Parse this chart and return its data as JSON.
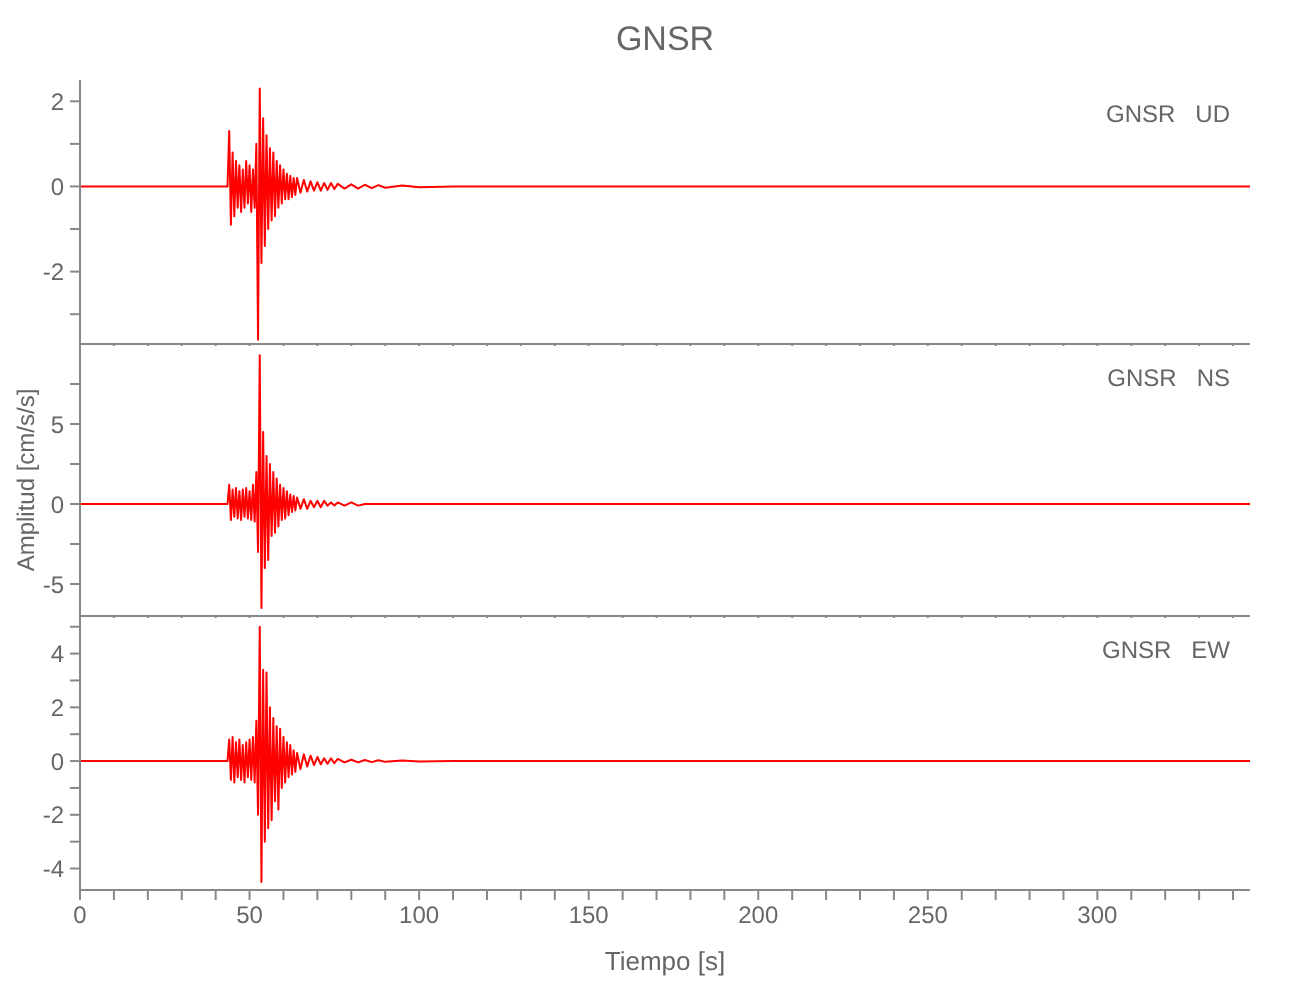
{
  "chart_data": [
    {
      "type": "line",
      "title": "GNSR",
      "annotations": [
        "GNSR   UD"
      ],
      "tick_labels": "y",
      "xlim": [
        0,
        345
      ],
      "xticks": [
        0,
        {
          "value": 10,
          "label": null
        },
        {
          "value": 20,
          "label": null
        },
        {
          "value": 30,
          "label": null
        },
        {
          "value": 40,
          "label": null
        },
        50,
        {
          "value": 60,
          "label": null
        },
        {
          "value": 70,
          "label": null
        },
        {
          "value": 80,
          "label": null
        },
        {
          "value": 90,
          "label": null
        },
        100,
        {
          "value": 110,
          "label": null
        },
        {
          "value": 120,
          "label": null
        },
        {
          "value": 130,
          "label": null
        },
        {
          "value": 140,
          "label": null
        },
        150,
        {
          "value": 160,
          "label": null
        },
        {
          "value": 170,
          "label": null
        },
        {
          "value": 180,
          "label": null
        },
        {
          "value": 190,
          "label": null
        },
        200,
        {
          "value": 210,
          "label": null
        },
        {
          "value": 220,
          "label": null
        },
        {
          "value": 230,
          "label": null
        },
        {
          "value": 240,
          "label": null
        },
        250,
        {
          "value": 260,
          "label": null
        },
        {
          "value": 270,
          "label": null
        },
        {
          "value": 280,
          "label": null
        },
        {
          "value": 290,
          "label": null
        },
        300,
        {
          "value": 310,
          "label": null
        },
        {
          "value": 320,
          "label": null
        },
        {
          "value": 330,
          "label": null
        },
        {
          "value": 340,
          "label": null
        }
      ],
      "ylim": [
        -3.7,
        2.5
      ],
      "yticks": [
        {
          "value": -3,
          "label": null
        },
        -2,
        {
          "value": -1,
          "label": null
        },
        0,
        {
          "value": 1,
          "label": null
        },
        2
      ],
      "series": [
        {
          "color": "#ff0000",
          "x": [
            0,
            10,
            20,
            30,
            40,
            43.5,
            44,
            44.5,
            45,
            45.5,
            46,
            46.5,
            47,
            47.5,
            48,
            48.5,
            49,
            49.5,
            50,
            50.5,
            51,
            51.5,
            52,
            52.5,
            53,
            53.5,
            54,
            54.5,
            55,
            55.5,
            56,
            56.5,
            57,
            57.5,
            58,
            58.5,
            59,
            59.5,
            60,
            60.5,
            61,
            61.5,
            62,
            62.5,
            63,
            63.5,
            64,
            65,
            66,
            67,
            68,
            69,
            70,
            71,
            72,
            73,
            74,
            75,
            76,
            78,
            80,
            82,
            84,
            86,
            88,
            90,
            95,
            100,
            110,
            120,
            150,
            200,
            250,
            275,
            280,
            300,
            345
          ],
          "values": [
            0,
            0,
            0,
            0,
            0,
            0,
            1.3,
            -0.9,
            0.8,
            -0.7,
            0.6,
            -0.5,
            0.5,
            -0.6,
            0.4,
            -0.5,
            0.6,
            -0.4,
            0.5,
            -0.6,
            0.4,
            -0.5,
            1.0,
            -3.6,
            2.3,
            -1.8,
            1.6,
            -1.4,
            1.2,
            -1.0,
            0.9,
            -0.8,
            0.8,
            -0.7,
            0.6,
            -0.5,
            0.5,
            -0.4,
            0.4,
            -0.3,
            0.3,
            -0.3,
            0.25,
            -0.25,
            0.2,
            -0.2,
            0.2,
            -0.15,
            0.15,
            -0.12,
            0.12,
            -0.1,
            0.1,
            -0.1,
            0.08,
            -0.08,
            0.08,
            -0.06,
            0.06,
            -0.05,
            0.05,
            -0.05,
            0.04,
            -0.04,
            0.03,
            -0.03,
            0.02,
            -0.02,
            0,
            0,
            0,
            0,
            0,
            0,
            0,
            0,
            0
          ]
        }
      ]
    },
    {
      "type": "line",
      "ylabel": "Amplitud [cm/s/s]",
      "annotations": [
        "GNSR   NS"
      ],
      "tick_labels": "y",
      "xlim": [
        0,
        345
      ],
      "xticks": [
        0,
        {
          "value": 10,
          "label": null
        },
        {
          "value": 20,
          "label": null
        },
        {
          "value": 30,
          "label": null
        },
        {
          "value": 40,
          "label": null
        },
        50,
        {
          "value": 60,
          "label": null
        },
        {
          "value": 70,
          "label": null
        },
        {
          "value": 80,
          "label": null
        },
        {
          "value": 90,
          "label": null
        },
        100,
        {
          "value": 110,
          "label": null
        },
        {
          "value": 120,
          "label": null
        },
        {
          "value": 130,
          "label": null
        },
        {
          "value": 140,
          "label": null
        },
        150,
        {
          "value": 160,
          "label": null
        },
        {
          "value": 170,
          "label": null
        },
        {
          "value": 180,
          "label": null
        },
        {
          "value": 190,
          "label": null
        },
        200,
        {
          "value": 210,
          "label": null
        },
        {
          "value": 220,
          "label": null
        },
        {
          "value": 230,
          "label": null
        },
        {
          "value": 240,
          "label": null
        },
        250,
        {
          "value": 260,
          "label": null
        },
        {
          "value": 270,
          "label": null
        },
        {
          "value": 280,
          "label": null
        },
        {
          "value": 290,
          "label": null
        },
        300,
        {
          "value": 310,
          "label": null
        },
        {
          "value": 320,
          "label": null
        },
        {
          "value": 330,
          "label": null
        },
        {
          "value": 340,
          "label": null
        }
      ],
      "ylim": [
        -7,
        10
      ],
      "yticks": [
        -5,
        {
          "value": -2.5,
          "label": null
        },
        0,
        {
          "value": 2.5,
          "label": null
        },
        5,
        {
          "value": 7.5,
          "label": null
        }
      ],
      "series": [
        {
          "color": "#ff0000",
          "x": [
            0,
            10,
            20,
            30,
            40,
            43.5,
            44,
            44.5,
            45,
            45.5,
            46,
            46.5,
            47,
            47.5,
            48,
            48.5,
            49,
            49.5,
            50,
            50.5,
            51,
            51.5,
            52,
            52.5,
            53,
            53.5,
            54,
            54.5,
            55,
            55.5,
            56,
            56.5,
            57,
            57.5,
            58,
            58.5,
            59,
            59.5,
            60,
            60.5,
            61,
            61.5,
            62,
            62.5,
            63,
            63.5,
            64,
            65,
            66,
            67,
            68,
            69,
            70,
            71,
            72,
            73,
            74,
            75,
            76,
            78,
            80,
            82,
            84,
            86,
            88,
            90,
            95,
            100,
            110,
            120,
            150,
            200,
            250,
            275,
            280,
            300,
            345
          ],
          "values": [
            0,
            0,
            0,
            0,
            0,
            0,
            1.2,
            -1.0,
            0.9,
            -0.8,
            1.0,
            -0.9,
            0.8,
            -1.0,
            0.9,
            -0.8,
            1.0,
            -0.9,
            0.8,
            -1.0,
            1.2,
            -1.1,
            2.0,
            -3.0,
            9.3,
            -6.5,
            4.5,
            -4.0,
            3.0,
            -3.5,
            2.5,
            -2.0,
            2.0,
            -1.8,
            1.6,
            -1.4,
            1.2,
            -1.0,
            1.0,
            -0.9,
            0.8,
            -0.7,
            0.6,
            -0.5,
            0.5,
            -0.4,
            0.4,
            -0.3,
            0.3,
            -0.3,
            0.2,
            -0.2,
            0.2,
            -0.2,
            0.2,
            -0.1,
            0.1,
            -0.1,
            0.1,
            -0.1,
            0.1,
            -0.1,
            0,
            0,
            0,
            0,
            0,
            0,
            0,
            0,
            0,
            0,
            0,
            0,
            0,
            0,
            0
          ]
        }
      ]
    },
    {
      "type": "line",
      "xlabel": "Tiempo [s]",
      "annotations": [
        "GNSR   EW"
      ],
      "xlim": [
        0,
        345
      ],
      "xticks": [
        0,
        {
          "value": 10,
          "label": null
        },
        {
          "value": 20,
          "label": null
        },
        {
          "value": 30,
          "label": null
        },
        {
          "value": 40,
          "label": null
        },
        50,
        {
          "value": 60,
          "label": null
        },
        {
          "value": 70,
          "label": null
        },
        {
          "value": 80,
          "label": null
        },
        {
          "value": 90,
          "label": null
        },
        100,
        {
          "value": 110,
          "label": null
        },
        {
          "value": 120,
          "label": null
        },
        {
          "value": 130,
          "label": null
        },
        {
          "value": 140,
          "label": null
        },
        150,
        {
          "value": 160,
          "label": null
        },
        {
          "value": 170,
          "label": null
        },
        {
          "value": 180,
          "label": null
        },
        {
          "value": 190,
          "label": null
        },
        200,
        {
          "value": 210,
          "label": null
        },
        {
          "value": 220,
          "label": null
        },
        {
          "value": 230,
          "label": null
        },
        {
          "value": 240,
          "label": null
        },
        250,
        {
          "value": 260,
          "label": null
        },
        {
          "value": 270,
          "label": null
        },
        {
          "value": 280,
          "label": null
        },
        {
          "value": 290,
          "label": null
        },
        300,
        {
          "value": 310,
          "label": null
        },
        {
          "value": 320,
          "label": null
        },
        {
          "value": 330,
          "label": null
        },
        {
          "value": 340,
          "label": null
        }
      ],
      "ylim": [
        -4.8,
        5.4
      ],
      "yticks": [
        -4,
        {
          "value": -3,
          "label": null
        },
        -2,
        {
          "value": -1,
          "label": null
        },
        0,
        {
          "value": 1,
          "label": null
        },
        2,
        {
          "value": 3,
          "label": null
        },
        4,
        {
          "value": 5,
          "label": null
        }
      ],
      "series": [
        {
          "color": "#ff0000",
          "x": [
            0,
            10,
            20,
            30,
            40,
            43.5,
            44,
            44.5,
            45,
            45.5,
            46,
            46.5,
            47,
            47.5,
            48,
            48.5,
            49,
            49.5,
            50,
            50.5,
            51,
            51.5,
            52,
            52.5,
            53,
            53.5,
            54,
            54.5,
            55,
            55.5,
            56,
            56.5,
            57,
            57.5,
            58,
            58.5,
            59,
            59.5,
            60,
            60.5,
            61,
            61.5,
            62,
            62.5,
            63,
            63.5,
            64,
            65,
            66,
            67,
            68,
            69,
            70,
            71,
            72,
            73,
            74,
            75,
            76,
            78,
            80,
            82,
            84,
            86,
            88,
            90,
            95,
            100,
            110,
            120,
            150,
            200,
            250,
            275,
            280,
            300,
            345
          ],
          "values": [
            0,
            0,
            0,
            0,
            0,
            0,
            0.8,
            -0.7,
            0.9,
            -0.8,
            0.7,
            -0.6,
            0.8,
            -0.7,
            0.6,
            -0.8,
            0.7,
            -0.6,
            0.8,
            -0.7,
            0.9,
            -0.8,
            1.5,
            -2.0,
            5.0,
            -4.5,
            3.4,
            -3.0,
            3.3,
            -2.5,
            2.0,
            -2.2,
            1.6,
            -1.5,
            1.3,
            -1.8,
            1.2,
            -1.0,
            0.9,
            -0.8,
            0.7,
            -0.6,
            0.6,
            -0.5,
            0.4,
            -0.4,
            0.3,
            -0.3,
            0.25,
            -0.2,
            0.2,
            -0.15,
            0.15,
            -0.12,
            0.1,
            -0.1,
            0.1,
            -0.08,
            0.08,
            -0.05,
            0.05,
            -0.05,
            0.04,
            -0.04,
            0.03,
            -0.03,
            0.02,
            -0.02,
            0,
            0,
            0,
            0,
            0,
            0,
            0,
            0,
            0
          ]
        }
      ]
    }
  ]
}
